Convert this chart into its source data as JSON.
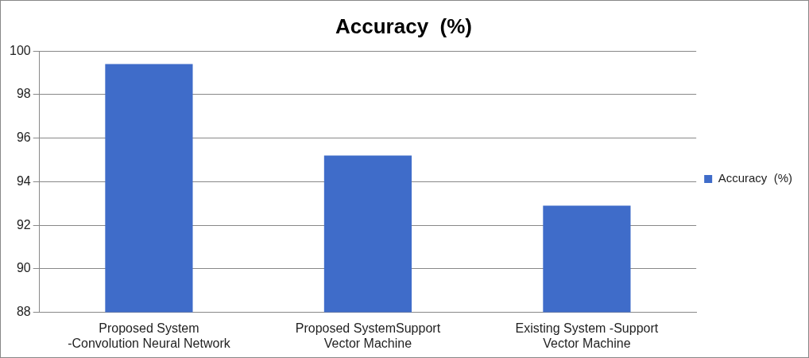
{
  "chart_data": {
    "type": "bar",
    "title": "Accuracy  (%)",
    "categories": [
      "Proposed System -Convolution Neural Network",
      "Proposed SystemSupport Vector Machine",
      "Existing System -Support Vector Machine"
    ],
    "series": [
      {
        "name": "Accuracy  (%)",
        "color": "#3f6cc9",
        "values": [
          99.4,
          95.2,
          92.9
        ]
      }
    ],
    "ylim": [
      88,
      100
    ],
    "yticks": [
      88,
      90,
      92,
      94,
      96,
      98,
      100
    ],
    "grid": "y",
    "legend": "right"
  }
}
